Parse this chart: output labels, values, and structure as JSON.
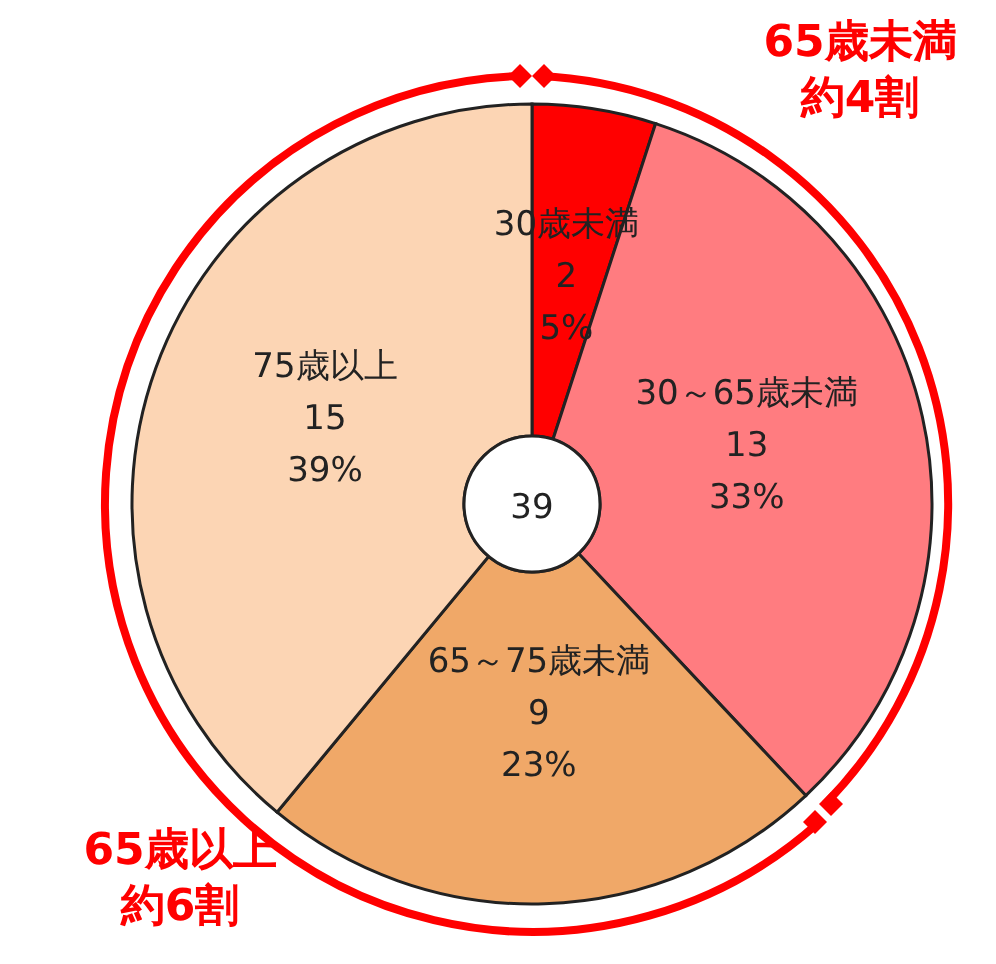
{
  "chart_data": {
    "type": "donut",
    "categories": [
      "30歳未満",
      "30～65歳未満",
      "65～75歳未満",
      "75歳以上"
    ],
    "values": [
      5,
      33,
      23,
      39
    ],
    "colors": [
      "#ff0000",
      "#ff7c80",
      "#f0a868",
      "#fcd5b4"
    ],
    "value_labels": [
      "2\n5%",
      "13\n33%",
      "9\n23%",
      "15\n39%"
    ],
    "annotations": [
      "39",
      "65歳未満",
      "約4割",
      "65歳以上",
      "約6割"
    ]
  }
}
